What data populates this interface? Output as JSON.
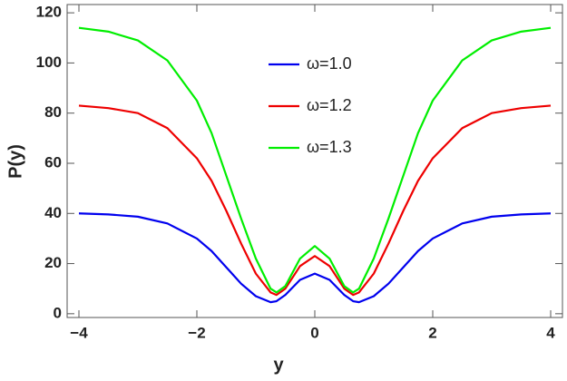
{
  "chart_data": {
    "type": "line",
    "x_label": "y",
    "y_label": "P(y)",
    "x": [
      -4,
      -3.5,
      -3,
      -2.5,
      -2,
      -1.75,
      -1.5,
      -1.25,
      -1,
      -0.75,
      -0.65,
      -0.5,
      -0.25,
      0,
      0.25,
      0.5,
      0.65,
      0.75,
      1,
      1.25,
      1.5,
      1.75,
      2,
      2.5,
      3,
      3.5,
      4
    ],
    "series": [
      {
        "name": "ω=1.0",
        "color": "#0000ee",
        "values": [
          40,
          39.6,
          38.7,
          36,
          30,
          25,
          18.5,
          12,
          7,
          4.6,
          5,
          7.5,
          13.5,
          16,
          13.5,
          7.5,
          5,
          4.6,
          7,
          12,
          18.5,
          25,
          30,
          36,
          38.7,
          39.6,
          40
        ]
      },
      {
        "name": "ω=1.2",
        "color": "#ee0000",
        "values": [
          83,
          82,
          80,
          74,
          62,
          53,
          41,
          28,
          16,
          8.5,
          7.5,
          10,
          19,
          23,
          19,
          10,
          7.5,
          8.5,
          16,
          28,
          41,
          53,
          62,
          74,
          80,
          82,
          83
        ]
      },
      {
        "name": "ω=1.3",
        "color": "#00ee00",
        "values": [
          114,
          112.5,
          109,
          101,
          85,
          72,
          55,
          38,
          22,
          10,
          8.5,
          11,
          22,
          27,
          22,
          11,
          8.5,
          10,
          22,
          38,
          55,
          72,
          85,
          101,
          109,
          112.5,
          114
        ]
      }
    ],
    "xlim": [
      -4.2,
      4.2
    ],
    "ylim": [
      -1.5,
      123.3
    ],
    "xticks": [
      {
        "value": -4,
        "label": "−4"
      },
      {
        "value": -2,
        "label": "−2"
      },
      0,
      2,
      4
    ],
    "yticks": [
      0,
      20,
      40,
      60,
      80,
      100,
      120
    ]
  }
}
